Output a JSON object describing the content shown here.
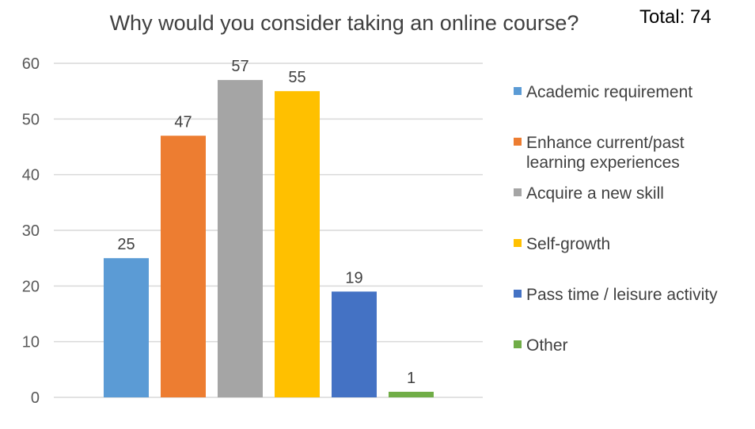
{
  "chart_data": {
    "type": "bar",
    "title": "Why would you consider taking an online course?",
    "total_label": "Total: 74",
    "categories": [
      "Academic requirement",
      "Enhance current/past learning experiences",
      "Acquire a new skill",
      "Self-growth",
      "Pass time / leisure activity",
      "Other"
    ],
    "values": [
      25,
      47,
      57,
      55,
      19,
      1
    ],
    "colors": [
      "#5B9BD5",
      "#ED7D31",
      "#A5A5A5",
      "#FFC000",
      "#4472C4",
      "#70AD47"
    ],
    "ylim": [
      0,
      60
    ],
    "yticks": [
      0,
      10,
      20,
      30,
      40,
      50,
      60
    ],
    "grid": true,
    "legend_position": "right",
    "xlabel": "",
    "ylabel": ""
  }
}
